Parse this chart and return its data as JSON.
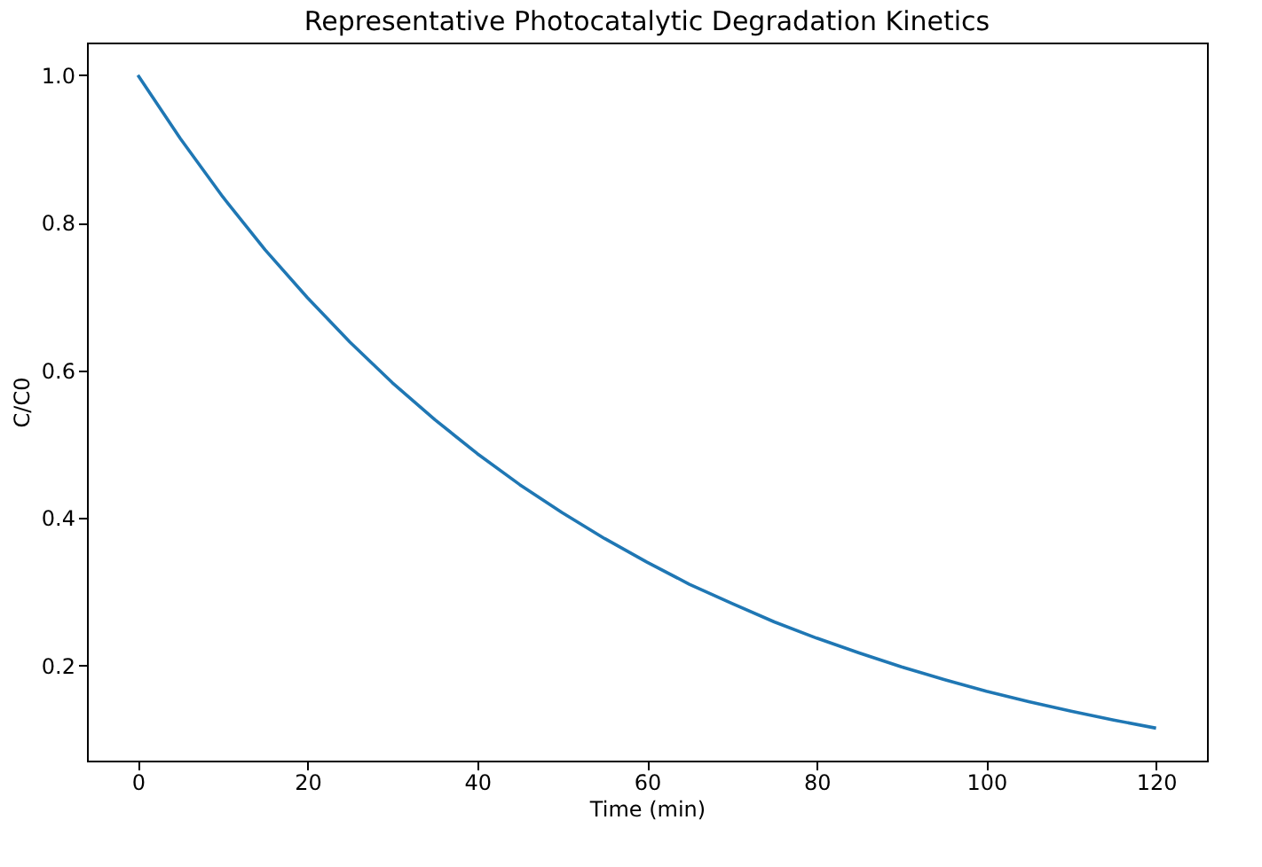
{
  "chart_data": {
    "type": "line",
    "title": "Representative Photocatalytic Degradation Kinetics",
    "xlabel": "Time (min)",
    "ylabel": "C/C0",
    "x": [
      0,
      5,
      10,
      15,
      20,
      25,
      30,
      35,
      40,
      45,
      50,
      55,
      60,
      65,
      70,
      75,
      80,
      85,
      90,
      95,
      100,
      105,
      110,
      115,
      120
    ],
    "series": [
      {
        "color": "#1f77b4",
        "values": [
          1.0,
          0.914,
          0.835,
          0.763,
          0.698,
          0.638,
          0.583,
          0.533,
          0.487,
          0.445,
          0.407,
          0.372,
          0.34,
          0.31,
          0.284,
          0.259,
          0.237,
          0.217,
          0.198,
          0.181,
          0.165,
          0.151,
          0.138,
          0.126,
          0.115
        ]
      }
    ],
    "xlim": [
      -6,
      126
    ],
    "ylim": [
      0.071,
      1.044
    ],
    "xticks": [
      0,
      20,
      40,
      60,
      80,
      100,
      120
    ],
    "yticks": [
      0.2,
      0.4,
      0.6,
      0.8,
      {
        "value": 1,
        "label": "1.0"
      }
    ],
    "grid": false,
    "marker": "none",
    "line_style": "solid"
  }
}
